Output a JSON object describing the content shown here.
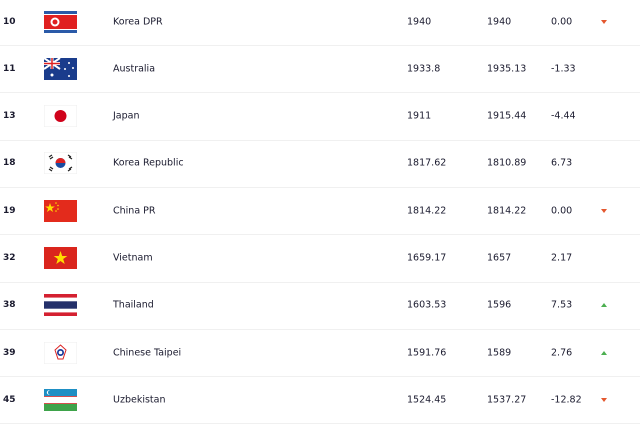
{
  "rows": [
    {
      "rank": "10",
      "team": "Korea DPR",
      "flag": "korea-dpr-flag",
      "points": "1940",
      "previous": "1940",
      "change": "0.00",
      "trend": "down"
    },
    {
      "rank": "11",
      "team": "Australia",
      "flag": "australia-flag",
      "points": "1933.8",
      "previous": "1935.13",
      "change": "-1.33",
      "trend": ""
    },
    {
      "rank": "13",
      "team": "Japan",
      "flag": "japan-flag",
      "points": "1911",
      "previous": "1915.44",
      "change": "-4.44",
      "trend": ""
    },
    {
      "rank": "18",
      "team": "Korea Republic",
      "flag": "korea-republic-flag",
      "points": "1817.62",
      "previous": "1810.89",
      "change": "6.73",
      "trend": ""
    },
    {
      "rank": "19",
      "team": "China PR",
      "flag": "china-flag",
      "points": "1814.22",
      "previous": "1814.22",
      "change": "0.00",
      "trend": "down"
    },
    {
      "rank": "32",
      "team": "Vietnam",
      "flag": "vietnam-flag",
      "points": "1659.17",
      "previous": "1657",
      "change": "2.17",
      "trend": ""
    },
    {
      "rank": "38",
      "team": "Thailand",
      "flag": "thailand-flag",
      "points": "1603.53",
      "previous": "1596",
      "change": "7.53",
      "trend": "up"
    },
    {
      "rank": "39",
      "team": "Chinese Taipei",
      "flag": "chinese-taipei-flag",
      "points": "1591.76",
      "previous": "1589",
      "change": "2.76",
      "trend": "up"
    },
    {
      "rank": "45",
      "team": "Uzbekistan",
      "flag": "uzbekistan-flag",
      "points": "1524.45",
      "previous": "1537.27",
      "change": "-12.82",
      "trend": "down"
    }
  ],
  "colors": {
    "up": "#4caf50",
    "down": "#e4572e"
  }
}
